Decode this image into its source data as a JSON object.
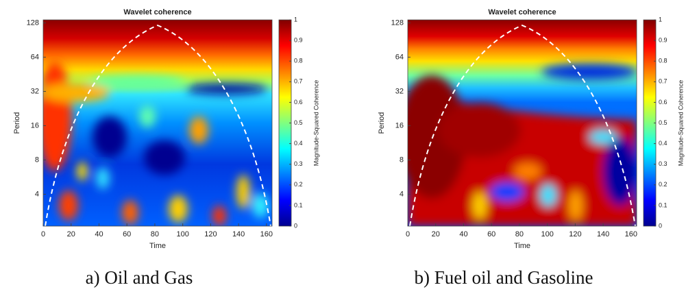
{
  "chart_data": [
    {
      "type": "heatmap",
      "title": "Wavelet coherence",
      "xlabel": "Time",
      "ylabel": "Period",
      "xlim": [
        0,
        164
      ],
      "xticks": [
        0,
        20,
        40,
        60,
        80,
        100,
        120,
        140,
        160
      ],
      "ylim": [
        2.1,
        136
      ],
      "yticks": [
        4,
        8,
        16,
        32,
        64,
        128
      ],
      "log_scale_y": true,
      "colorbar": {
        "label": "Magnitude-Squared Coherence",
        "lim": [
          0,
          1
        ],
        "ticks": [
          0,
          0.1,
          0.2,
          0.3,
          0.4,
          0.5,
          0.6,
          0.7,
          0.8,
          0.9,
          1
        ]
      },
      "caption": "a) Oil and Gas"
    },
    {
      "type": "heatmap",
      "title": "Wavelet coherence",
      "xlabel": "Time",
      "ylabel": "Period",
      "xlim": [
        0,
        164
      ],
      "xticks": [
        0,
        20,
        40,
        60,
        80,
        100,
        120,
        140,
        160
      ],
      "ylim": [
        2.1,
        136
      ],
      "yticks": [
        4,
        8,
        16,
        32,
        64,
        128
      ],
      "log_scale_y": true,
      "colorbar": {
        "label": "Magnitude-Squared Coherence",
        "lim": [
          0,
          1
        ],
        "ticks": [
          0,
          0.1,
          0.2,
          0.3,
          0.4,
          0.5,
          0.6,
          0.7,
          0.8,
          0.9,
          1
        ]
      },
      "caption": "b) Fuel oil and Gasoline"
    }
  ]
}
